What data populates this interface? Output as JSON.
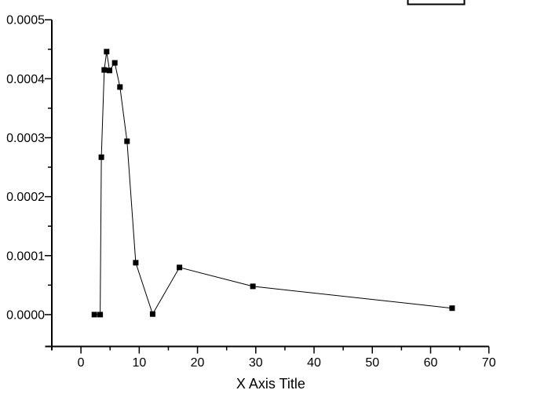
{
  "chart_data": {
    "type": "line",
    "title": "",
    "xlabel": "X Axis Title",
    "ylabel": "",
    "xlim": [
      -5,
      70
    ],
    "ylim": [
      -5.4e-05,
      0.0005
    ],
    "grid": false,
    "x_major_ticks": [
      0,
      10,
      20,
      30,
      40,
      50,
      60,
      70
    ],
    "x_tick_labels": [
      "0",
      "10",
      "20",
      "30",
      "40",
      "50",
      "60",
      "70"
    ],
    "x_minor_ticks": [
      5,
      15,
      25,
      35,
      45,
      55,
      65
    ],
    "y_major_ticks": [
      0.0,
      0.0001,
      0.0002,
      0.0003,
      0.0004,
      0.0005
    ],
    "y_tick_labels": [
      "0.0000",
      "0.0001",
      "0.0002",
      "0.0003",
      "0.0004",
      "0.0005"
    ],
    "y_minor_ticks": [
      5e-05,
      0.00015,
      0.00025,
      0.00035,
      0.00045
    ],
    "legend": {
      "position": "top-right",
      "clipped_by_top_edge": true,
      "entries": []
    },
    "series": [
      {
        "marker": "filled-square",
        "line_style": "solid",
        "color": "#000000",
        "points": [
          [
            2.3,
            0.0
          ],
          [
            3.3,
            0.0
          ],
          [
            3.5,
            0.000267
          ],
          [
            4.0,
            0.000415
          ],
          [
            4.4,
            0.000446
          ],
          [
            4.9,
            0.000414
          ],
          [
            5.8,
            0.000427
          ],
          [
            6.7,
            0.000386
          ],
          [
            7.9,
            0.000294
          ],
          [
            9.4,
            8.8e-05
          ],
          [
            12.3,
            1e-06
          ],
          [
            16.9,
            8e-05
          ],
          [
            29.5,
            4.8e-05
          ],
          [
            63.7,
            1.1e-05
          ]
        ]
      }
    ]
  },
  "colors": {
    "background": "#ffffff",
    "axis": "#000000",
    "text": "#000000",
    "marker": "#000000"
  }
}
